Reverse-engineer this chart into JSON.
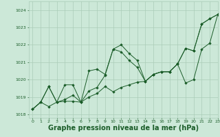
{
  "bg_color": "#cce8d8",
  "grid_color": "#aaccb8",
  "line_color": "#1a5c28",
  "marker_color": "#1a5c28",
  "xlabel": "Graphe pression niveau de la mer (hPa)",
  "xlabel_fontsize": 7,
  "xlim": [
    -0.5,
    23
  ],
  "ylim": [
    1017.8,
    1024.5
  ],
  "yticks": [
    1018,
    1019,
    1020,
    1021,
    1022,
    1023,
    1024
  ],
  "xticks": [
    0,
    1,
    2,
    3,
    4,
    5,
    6,
    7,
    8,
    9,
    10,
    11,
    12,
    13,
    14,
    15,
    16,
    17,
    18,
    19,
    20,
    21,
    22,
    23
  ],
  "series": [
    [
      1018.3,
      1018.7,
      1018.45,
      1018.7,
      1018.85,
      1019.1,
      1018.7,
      1019.35,
      1019.55,
      1020.25,
      1021.75,
      1022.0,
      1021.5,
      1021.1,
      1019.9,
      1020.3,
      1020.45,
      1020.45,
      1020.9,
      1021.8,
      1021.65,
      1023.2,
      1023.5,
      1023.75
    ],
    [
      1018.3,
      1018.7,
      1019.6,
      1018.7,
      1018.75,
      1018.75,
      1018.7,
      1019.0,
      1019.2,
      1019.6,
      1019.3,
      1019.55,
      1019.7,
      1019.85,
      1019.9,
      1020.3,
      1020.45,
      1020.45,
      1020.9,
      1019.8,
      1020.0,
      1021.75,
      1022.1,
      1023.75
    ],
    [
      1018.3,
      1018.7,
      1019.6,
      1018.7,
      1019.7,
      1019.7,
      1018.7,
      1020.5,
      1020.6,
      1020.3,
      1021.75,
      1021.6,
      1021.1,
      1020.7,
      1019.9,
      1020.3,
      1020.45,
      1020.45,
      1020.9,
      1021.8,
      1021.65,
      1023.2,
      1023.5,
      1023.75
    ]
  ]
}
